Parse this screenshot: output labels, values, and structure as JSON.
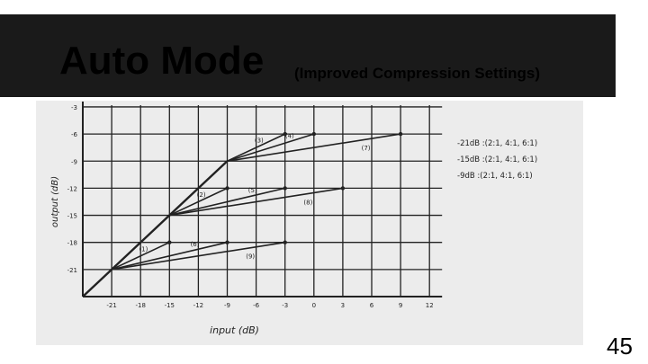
{
  "slide": {
    "title": "Auto Mode",
    "subtitle": "(Improved Compression Settings)",
    "page_number": "45"
  },
  "colors": {
    "title_bar": "#1a1a1a",
    "title_text": "#ffffff",
    "ink": "#222222",
    "paper": "#ececec"
  },
  "chart_data": {
    "type": "line",
    "xlabel": "input (dB)",
    "ylabel": "output (dB)",
    "xlim": [
      -21,
      12
    ],
    "ylim": [
      -24,
      -3
    ],
    "grid": true,
    "x_ticks": [
      "-21",
      "-18",
      "-15",
      "-12",
      "-9",
      "-6",
      "-3",
      "0",
      "3",
      "6",
      "9",
      "12"
    ],
    "x_tick_values": [
      -21,
      -18,
      -15,
      -12,
      -9,
      -6,
      -3,
      0,
      3,
      6,
      9,
      12
    ],
    "y_ticks": [
      "-3",
      "-6",
      "-9",
      "-12",
      "-15",
      "-18",
      "-21"
    ],
    "y_tick_values": [
      -3,
      -6,
      -9,
      -12,
      -15,
      -18,
      -21
    ],
    "baseline": {
      "name": "",
      "points": [
        [
          -24,
          -24
        ],
        [
          -21,
          -21
        ],
        [
          -15,
          -15
        ],
        [
          -9,
          -9
        ]
      ]
    },
    "series": [
      {
        "name": "(1)",
        "points": [
          [
            -21,
            -21
          ],
          [
            -15,
            -18
          ]
        ]
      },
      {
        "name": "(2)",
        "points": [
          [
            -15,
            -15
          ],
          [
            -9,
            -12
          ]
        ]
      },
      {
        "name": "(3)",
        "points": [
          [
            -9,
            -9
          ],
          [
            -3,
            -6
          ]
        ]
      },
      {
        "name": "(4)",
        "points": [
          [
            -9,
            -9
          ],
          [
            0,
            -6
          ]
        ]
      },
      {
        "name": "(5)",
        "points": [
          [
            -15,
            -15
          ],
          [
            -3,
            -12
          ]
        ]
      },
      {
        "name": "(6)",
        "points": [
          [
            -21,
            -21
          ],
          [
            -9,
            -18
          ]
        ]
      },
      {
        "name": "(7)",
        "points": [
          [
            -9,
            -9
          ],
          [
            9,
            -6
          ]
        ]
      },
      {
        "name": "(8)",
        "points": [
          [
            -15,
            -15
          ],
          [
            3,
            -12
          ]
        ]
      },
      {
        "name": "(9)",
        "points": [
          [
            -21,
            -21
          ],
          [
            -3,
            -18
          ]
        ]
      }
    ],
    "annotations": [
      "-21dB :(2:1, 4:1, 6:1)",
      "-15dB :(2:1, 4:1, 6:1)",
      "-9dB :(2:1, 4:1, 6:1)"
    ]
  }
}
